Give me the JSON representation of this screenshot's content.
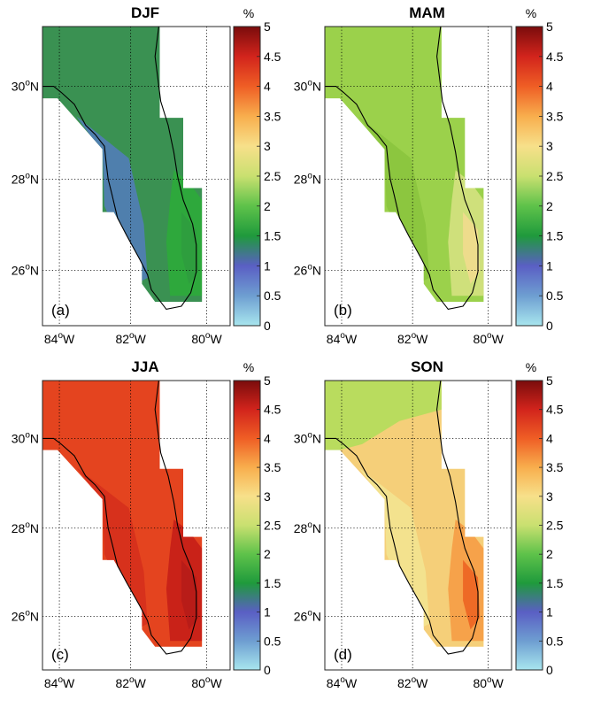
{
  "figure": {
    "colorbar": {
      "unit": "%",
      "ticks": [
        "0",
        "0.5",
        "1",
        "1.5",
        "2",
        "2.5",
        "3",
        "3.5",
        "4",
        "4.5",
        "5"
      ],
      "stops": [
        "#a8e6ee",
        "#6e9ed1",
        "#5a5fc4",
        "#1f9a3c",
        "#5ec24a",
        "#c9e070",
        "#f7e08a",
        "#f8ae4d",
        "#ef5e25",
        "#d2241c",
        "#7a0c0c"
      ]
    },
    "axes": {
      "x_ticks": [
        "84",
        "82",
        "80"
      ],
      "x_suffix": "W",
      "y_ticks": [
        "30",
        "28",
        "26"
      ],
      "y_suffix": "N",
      "degree": "o"
    },
    "panels": [
      {
        "title": "DJF",
        "label": "(a)",
        "fill": "#3a9152",
        "shades": [
          {
            "kind": "west",
            "color": "#4f7fad"
          },
          {
            "kind": "east",
            "color": "#2ea83c"
          },
          {
            "kind": "mid",
            "color": "#2e9e3e"
          }
        ]
      },
      {
        "title": "MAM",
        "label": "(b)",
        "fill": "#9bd14b",
        "shades": [
          {
            "kind": "east",
            "color": "#cfe07b"
          },
          {
            "kind": "mid",
            "color": "#eedc8c"
          },
          {
            "kind": "west",
            "color": "#8cc63f"
          }
        ]
      },
      {
        "title": "JJA",
        "label": "(c)",
        "fill": "#e4441f",
        "shades": [
          {
            "kind": "west",
            "color": "#d7311c"
          },
          {
            "kind": "east",
            "color": "#c92218"
          },
          {
            "kind": "mid",
            "color": "#b81c18"
          }
        ]
      },
      {
        "title": "SON",
        "label": "(d)",
        "fill": "#f5cf79",
        "shades": [
          {
            "kind": "north",
            "color": "#b9dc5e"
          },
          {
            "kind": "west",
            "color": "#f3e28e"
          },
          {
            "kind": "east",
            "color": "#f6a24a"
          },
          {
            "kind": "mid",
            "color": "#ee6a26"
          }
        ]
      }
    ]
  }
}
